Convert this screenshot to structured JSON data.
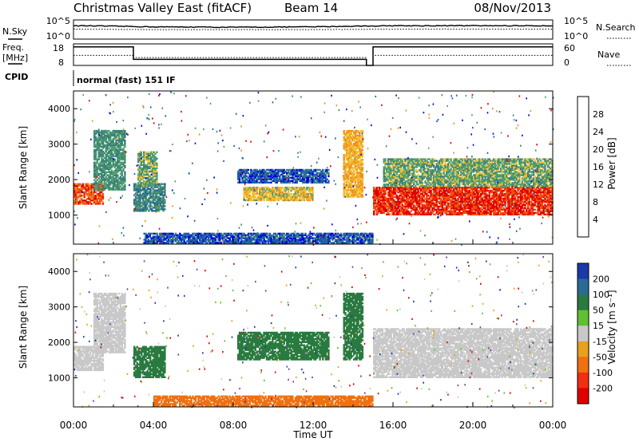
{
  "header": {
    "station": "Christmas Valley East (fitACF)",
    "beam": "Beam 14",
    "date": "08/Nov/2013"
  },
  "strip_labels": {
    "nsky": "N.Sky",
    "nsearch": "N.Search",
    "nsky_ticks": [
      "10^5",
      "10^0"
    ],
    "nsearch_ticks": [
      "10^5",
      "10^0"
    ],
    "freq": "Freq.",
    "freq_unit": "[MHz]",
    "freq_ticks": [
      "18",
      "8"
    ],
    "nave": "Nave",
    "nave_ticks": [
      "60",
      "0"
    ],
    "cpid": "CPID",
    "cpid_value": "normal (fast) 151 IF"
  },
  "power_colorbar": {
    "label": "Power [dB]",
    "ticks": [
      "4",
      "8",
      "12",
      "16",
      "20",
      "24",
      "28"
    ],
    "colors": [
      "#0000e0",
      "#1a5ab0",
      "#3c7f78",
      "#4fa070",
      "#f0c030",
      "#f09020",
      "#f05010",
      "#e00000"
    ]
  },
  "velocity_colorbar": {
    "label": "Velocity [m s⁻¹]",
    "ticks": [
      "200",
      "100",
      "50",
      "15",
      "-15",
      "-50",
      "-100",
      "-200"
    ],
    "colors": [
      "#1a3aa8",
      "#2a6a98",
      "#2a7a40",
      "#60c030",
      "#c8c8c8",
      "#e8a020",
      "#f07010",
      "#f03010",
      "#e00000"
    ]
  },
  "chart_data": [
    {
      "type": "line",
      "title": "N.Sky / N.Search",
      "x": [
        "00:00",
        "04:00",
        "08:00",
        "12:00",
        "16:00",
        "20:00",
        "00:00"
      ],
      "series": [
        {
          "name": "N.Sky",
          "values": [
            3000,
            1500,
            1200,
            1500,
            3000,
            3000,
            3000
          ]
        },
        {
          "name": "N.Search",
          "values": [
            400,
            300,
            300,
            300,
            400,
            400,
            400
          ]
        }
      ]
    },
    {
      "type": "line",
      "title": "Freq. / Nave",
      "x": [
        "00:00",
        "02:55",
        "03:00",
        "14:30",
        "14:40",
        "14:55",
        "15:00",
        "00:00"
      ],
      "series": [
        {
          "name": "Freq.",
          "values": [
            16.6,
            16.6,
            10.8,
            10.8,
            8,
            8,
            16.6,
            16.6
          ]
        },
        {
          "name": "Nave",
          "values": [
            28,
            28,
            22,
            22,
            0,
            0,
            28,
            28
          ]
        }
      ]
    },
    {
      "type": "heatmap",
      "title": "Power [dB]",
      "xlabel": "",
      "ylabel": "Slant Range [km]",
      "x_ticks": [
        "00:00",
        "04:00",
        "08:00",
        "12:00",
        "16:00",
        "20:00",
        "00:00"
      ],
      "y_ticks": [
        1000,
        2000,
        3000,
        4000
      ],
      "ylim": [
        180,
        4500
      ],
      "regions": [
        {
          "t0": 0.0,
          "t1": 1.5,
          "r0": 1300,
          "r1": 1900,
          "value": 26
        },
        {
          "t0": 1.0,
          "t1": 2.6,
          "r0": 1700,
          "r1": 3400,
          "value": 12
        },
        {
          "t0": 3.0,
          "t1": 4.6,
          "r0": 1100,
          "r1": 1900,
          "value": 10
        },
        {
          "t0": 3.2,
          "t1": 4.2,
          "r0": 1800,
          "r1": 2800,
          "value": 14
        },
        {
          "t0": 8.2,
          "t1": 12.8,
          "r0": 1900,
          "r1": 2300,
          "value": 6
        },
        {
          "t0": 8.5,
          "t1": 12.0,
          "r0": 1400,
          "r1": 1800,
          "value": 18
        },
        {
          "t0": 13.5,
          "t1": 14.5,
          "r0": 1500,
          "r1": 3400,
          "value": 20
        },
        {
          "t0": 15.0,
          "t1": 24.0,
          "r0": 1000,
          "r1": 1800,
          "value": 28
        },
        {
          "t0": 15.5,
          "t1": 24.0,
          "r0": 1800,
          "r1": 2600,
          "value": 14
        },
        {
          "t0": 3.5,
          "t1": 15.0,
          "r0": 200,
          "r1": 500,
          "value": 6
        }
      ]
    },
    {
      "type": "heatmap",
      "title": "Velocity [m s⁻¹]",
      "xlabel": "Time UT",
      "ylabel": "Slant Range [km]",
      "x_ticks": [
        "00:00",
        "04:00",
        "08:00",
        "12:00",
        "16:00",
        "20:00",
        "00:00"
      ],
      "y_ticks": [
        1000,
        2000,
        3000,
        4000
      ],
      "ylim": [
        180,
        4500
      ],
      "regions": [
        {
          "t0": 0.0,
          "t1": 1.5,
          "r0": 1200,
          "r1": 1900,
          "value": 0
        },
        {
          "t0": 1.0,
          "t1": 2.6,
          "r0": 1700,
          "r1": 3400,
          "value": 0
        },
        {
          "t0": 3.0,
          "t1": 4.6,
          "r0": 1000,
          "r1": 1900,
          "value": 40
        },
        {
          "t0": 8.2,
          "t1": 12.8,
          "r0": 1500,
          "r1": 2300,
          "value": 40
        },
        {
          "t0": 13.5,
          "t1": 14.5,
          "r0": 1500,
          "r1": 3400,
          "value": 40
        },
        {
          "t0": 15.0,
          "t1": 24.0,
          "r0": 1000,
          "r1": 2400,
          "value": 0
        },
        {
          "t0": 4.0,
          "t1": 15.0,
          "r0": 200,
          "r1": 500,
          "value": -40
        }
      ]
    }
  ]
}
